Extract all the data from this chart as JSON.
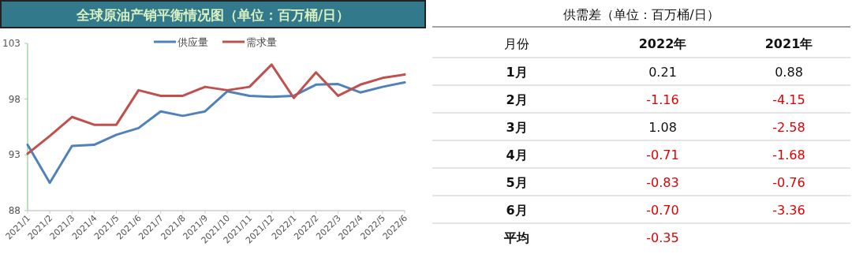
{
  "chart_data": [
    {
      "type": "line",
      "title": "全球原油产销平衡情况图（单位：百万桶/日）",
      "categories": [
        "2021/1",
        "2021/2",
        "2021/3",
        "2021/4",
        "2021/5",
        "2021/6",
        "2021/7",
        "2021/8",
        "2021/9",
        "2021/10",
        "2021/11",
        "2021/12",
        "2022/1",
        "2022/2",
        "2022/3",
        "2022/4",
        "2022/5",
        "2022/6"
      ],
      "series": [
        {
          "name": "供应量",
          "color": "#4f81bd",
          "values": [
            93.9,
            90.5,
            93.8,
            93.9,
            94.8,
            95.4,
            96.9,
            96.5,
            96.9,
            98.7,
            98.3,
            98.2,
            98.3,
            99.3,
            99.35,
            98.6,
            99.1,
            99.5
          ]
        },
        {
          "name": "需求量",
          "color": "#c0504d",
          "values": [
            93.1,
            94.7,
            96.4,
            95.7,
            95.7,
            98.8,
            98.3,
            98.3,
            99.1,
            98.8,
            99.1,
            101.1,
            98.1,
            100.4,
            98.3,
            99.3,
            99.9,
            100.2
          ]
        }
      ],
      "ylim": [
        88,
        103
      ],
      "yticks": [
        88,
        93,
        98,
        103
      ],
      "grid": false,
      "legend": "top",
      "marker": "none",
      "line_style": "solid"
    },
    {
      "type": "heatmap",
      "title": "供需差（单位：百万桶/日）",
      "ylabel": "月份",
      "categories": [
        "2022年",
        "2021年"
      ],
      "y_categories": [
        "1月",
        "2月",
        "3月",
        "4月",
        "5月",
        "6月",
        "平均"
      ],
      "cells": [
        [
          0.21,
          0.88
        ],
        [
          -1.16,
          -4.15
        ],
        [
          1.08,
          -2.58
        ],
        [
          -0.71,
          -1.68
        ],
        [
          -0.83,
          -0.76
        ],
        [
          -0.7,
          -3.36
        ],
        [
          -0.35,
          null
        ]
      ],
      "cell_labels": [
        [
          "0.21",
          "0.88"
        ],
        [
          "-1.16",
          "-4.15"
        ],
        [
          "1.08",
          "-2.58"
        ],
        [
          "-0.71",
          "-1.68"
        ],
        [
          "-0.83",
          "-0.76"
        ],
        [
          "-0.70",
          "-3.36"
        ],
        [
          "-0.35",
          null
        ]
      ]
    }
  ]
}
